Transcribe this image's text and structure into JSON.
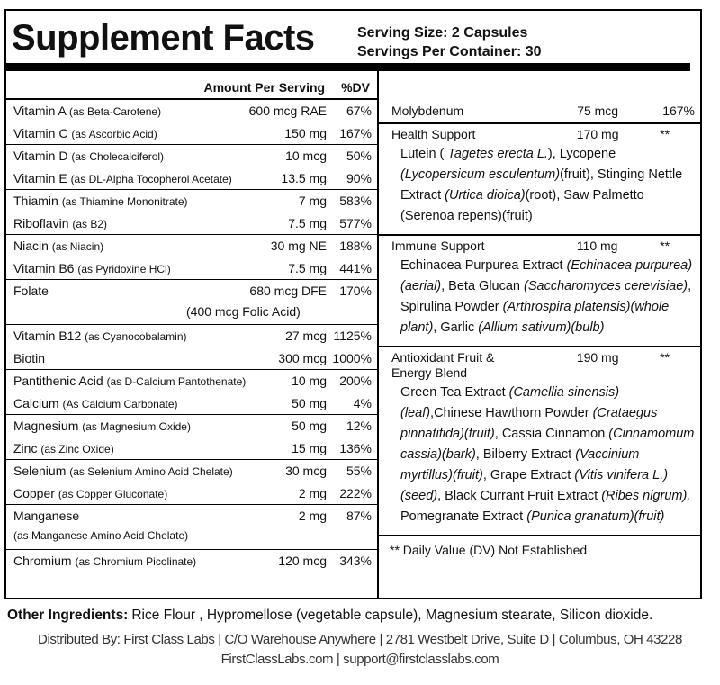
{
  "header": {
    "title": "Supplement Facts",
    "serving_size": "Serving Size: 2 Capsules",
    "servings": "Servings Per Container: 30"
  },
  "left": {
    "amount_header": "Amount Per Serving",
    "dv_header": "%DV",
    "rows": [
      {
        "name": "Vitamin A",
        "note": "(as Beta-Carotene)",
        "amount": "600 mcg RAE",
        "dv": "67%"
      },
      {
        "name": "Vitamin C",
        "note": "(as Ascorbic Acid)",
        "amount": "150 mg",
        "dv": "167%"
      },
      {
        "name": "Vitamin D",
        "note": "(as Cholecalciferol)",
        "amount": "10 mcg",
        "dv": "50%"
      },
      {
        "name": "Vitamin E",
        "note": "(as DL-Alpha Tocopherol Acetate)",
        "amount": "13.5 mg",
        "dv": "90%"
      },
      {
        "name": "Thiamin",
        "note": "(as Thiamine Mononitrate)",
        "amount": "7 mg",
        "dv": "583%"
      },
      {
        "name": "Riboflavin",
        "note": "(as B2)",
        "amount": "7.5 mg",
        "dv": "577%"
      },
      {
        "name": "Niacin",
        "note": "(as Niacin)",
        "amount": "30 mg NE",
        "dv": "188%"
      },
      {
        "name": "Vitamin B6",
        "note": "(as Pyridoxine HCl)",
        "amount": "7.5 mg",
        "dv": "441%"
      },
      {
        "name": "Folate",
        "amount": "680 mcg DFE",
        "dv": "170%",
        "extra": "(400 mcg Folic Acid)"
      },
      {
        "name": "Vitamin B12",
        "note": "(as Cyanocobalamin)",
        "amount": "27 mcg",
        "dv": "1125%"
      },
      {
        "name": "Biotin",
        "amount": "300 mcg",
        "dv": "1000%"
      },
      {
        "name": "Pantithenic Acid",
        "note": "(as D-Calcium Pantothenate)",
        "amount": "10 mg",
        "dv": "200%"
      },
      {
        "name": "Calcium",
        "note": "(As Calcium Carbonate)",
        "amount": "50 mg",
        "dv": "4%"
      },
      {
        "name": "Magnesium",
        "note": "(as Magnesium Oxide)",
        "amount": "50 mg",
        "dv": "12%"
      },
      {
        "name": "Zinc",
        "note": "(as Zinc Oxide)",
        "amount": "15 mg",
        "dv": "136%"
      },
      {
        "name": "Selenium",
        "note": "(as Selenium Amino Acid Chelate)",
        "amount": "30 mcg",
        "dv": "55%"
      },
      {
        "name": "Copper",
        "note": "(as Copper Gluconate)",
        "amount": "2 mg",
        "dv": "222%"
      },
      {
        "name": "Manganese",
        "amount": "2 mg",
        "dv": "87%",
        "extra": "(as Manganese Amino Acid Chelate)"
      },
      {
        "name": "Chromium",
        "note": "(as Chromium Picolinate)",
        "amount": "120 mcg",
        "dv": "343%"
      }
    ]
  },
  "right": {
    "molybdenum": {
      "name": "Molybdenum",
      "amount": "75 mcg",
      "dv": "167%"
    },
    "blends": [
      {
        "name": "Health Support",
        "amount": "170 mg",
        "dv": "**",
        "parts": [
          {
            "text": "Lutein ( "
          },
          {
            "text": "Tagetes erecta L.",
            "italic": true
          },
          {
            "text": "), Lycopene "
          },
          {
            "text": "(Lycopersicum esculentum)",
            "italic": true
          },
          {
            "text": "(fruit), Stinging Nettle Extract "
          },
          {
            "text": "(Urtica dioica)",
            "italic": true
          },
          {
            "text": "(root), Saw Palmetto (Serenoa repens)(fruit)"
          }
        ]
      },
      {
        "name": "Immune Support",
        "amount": "110 mg",
        "dv": "**",
        "parts": [
          {
            "text": "Echinacea Purpurea Extract "
          },
          {
            "text": "(Echinacea purpurea)(aerial)",
            "italic": true
          },
          {
            "text": ", Beta Glucan "
          },
          {
            "text": "(Saccharomyces cerevisiae)",
            "italic": true
          },
          {
            "text": ", Spirulina Powder "
          },
          {
            "text": "(Arthrospira platensis)(whole plant)",
            "italic": true
          },
          {
            "text": ", Garlic "
          },
          {
            "text": "(Allium sativum)(bulb)",
            "italic": true
          }
        ]
      },
      {
        "name": "Antioxidant Fruit & Energy Blend",
        "amount": "190 mg",
        "dv": "**",
        "parts": [
          {
            "text": "Green Tea Extract "
          },
          {
            "text": "(Camellia sinensis)(leaf)",
            "italic": true
          },
          {
            "text": ",Chinese Hawthorn Powder "
          },
          {
            "text": "(Crataegus pinnatifida)(fruit)",
            "italic": true
          },
          {
            "text": ", Cassia Cinnamon "
          },
          {
            "text": "(Cinnamomum cassia)(bark)",
            "italic": true
          },
          {
            "text": ", Bilberry Extract "
          },
          {
            "text": "(Vaccinium myrtillus)(fruit)",
            "italic": true
          },
          {
            "text": ", Grape Extract "
          },
          {
            "text": "(Vitis vinifera L.)(seed)",
            "italic": true
          },
          {
            "text": ", Black Currant Fruit Extract "
          },
          {
            "text": "(Ribes nigrum),",
            "italic": true
          },
          {
            "text": " Pomegranate Extract "
          },
          {
            "text": "(Punica granatum)(fruit)",
            "italic": true
          }
        ]
      }
    ],
    "footnote": "** Daily Value (DV) Not Established"
  },
  "footer": {
    "other_label": "Other Ingredients:",
    "other_text": "Rice Flour , Hypromellose (vegetable capsule), Magnesium stearate, Silicon dioxide.",
    "distributed": "Distributed By: First Class Labs | C/O Warehouse Anywhere | 2781 Westbelt Drive, Suite D | Columbus, OH 43228",
    "contact": "FirstClassLabs.com | support@firstclasslabs.com"
  }
}
